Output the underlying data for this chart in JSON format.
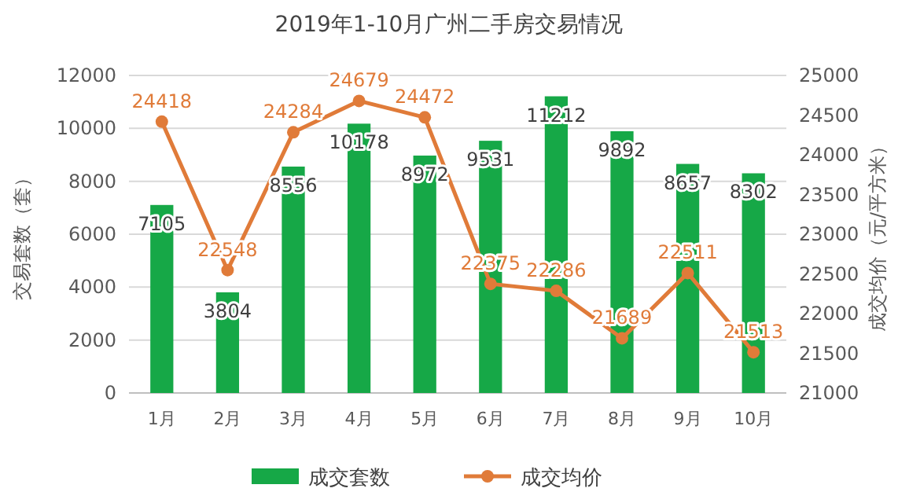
{
  "chart_data": {
    "type": "bar",
    "title": "2019年1-10月广州二手房交易情况",
    "ylabel": "交易套数（套）",
    "y2label": "成交均价（元/平方米）",
    "categories": [
      "1月",
      "2月",
      "3月",
      "4月",
      "5月",
      "6月",
      "7月",
      "8月",
      "9月",
      "10月"
    ],
    "series": [
      {
        "name": "成交套数",
        "color": "#16a847",
        "values": [
          7105,
          3804,
          8556,
          10178,
          8972,
          9531,
          11212,
          9892,
          8657,
          8302
        ]
      },
      {
        "name": "成交均价",
        "type": "line",
        "axis": "y2",
        "color": "#e07b39",
        "values": [
          24418,
          22548,
          24284,
          24679,
          24472,
          22375,
          22286,
          21689,
          22511,
          21513
        ]
      }
    ],
    "ylim": [
      0,
      12000
    ],
    "yticks": [
      0,
      2000,
      4000,
      6000,
      8000,
      10000,
      12000
    ],
    "y2lim": [
      21000,
      25000
    ],
    "y2ticks": [
      21000,
      21500,
      22000,
      22500,
      23000,
      23500,
      24000,
      24500,
      25000
    ],
    "grid": "y",
    "legend": "bottom",
    "marker": "circle",
    "data_labels": true
  }
}
